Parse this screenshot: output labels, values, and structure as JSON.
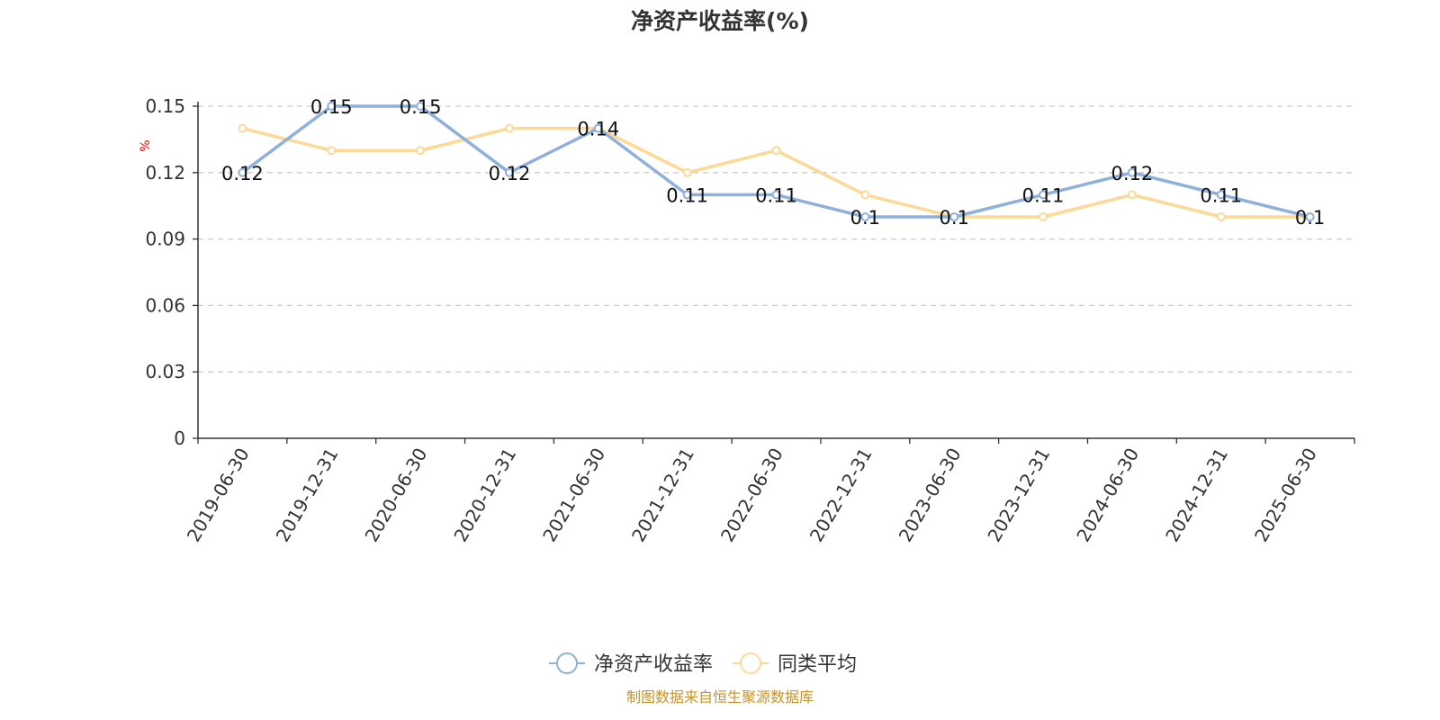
{
  "chart_data": {
    "type": "line",
    "title": "净资产收益率(%)",
    "ylabel": "%",
    "xlabel": "",
    "ylim": [
      0,
      0.15
    ],
    "yticks": [
      "0",
      "0.03",
      "0.06",
      "0.09",
      "0.12",
      "0.15"
    ],
    "grid": true,
    "legend_position": "bottom",
    "categories": [
      "2019-06-30",
      "2019-12-31",
      "2020-06-30",
      "2020-12-31",
      "2021-06-30",
      "2021-12-31",
      "2022-06-30",
      "2022-12-31",
      "2023-06-30",
      "2023-12-31",
      "2024-06-30",
      "2024-12-31",
      "2025-06-30"
    ],
    "series": [
      {
        "name": "净资产收益率",
        "color": "#8eb0dc",
        "show_labels": true,
        "values": [
          0.12,
          0.15,
          0.15,
          0.12,
          0.14,
          0.11,
          0.11,
          0.1,
          0.1,
          0.11,
          0.12,
          0.11,
          0.1
        ]
      },
      {
        "name": "同类平均",
        "color": "#fdd995",
        "show_labels": false,
        "values": [
          0.14,
          0.13,
          0.13,
          0.14,
          0.14,
          0.12,
          0.13,
          0.11,
          0.1,
          0.1,
          0.11,
          0.1,
          0.1
        ]
      }
    ]
  },
  "footer": {
    "source": "制图数据来自恒生聚源数据库",
    "color": "#c8922a"
  },
  "y_unit_color": "#ff0000"
}
